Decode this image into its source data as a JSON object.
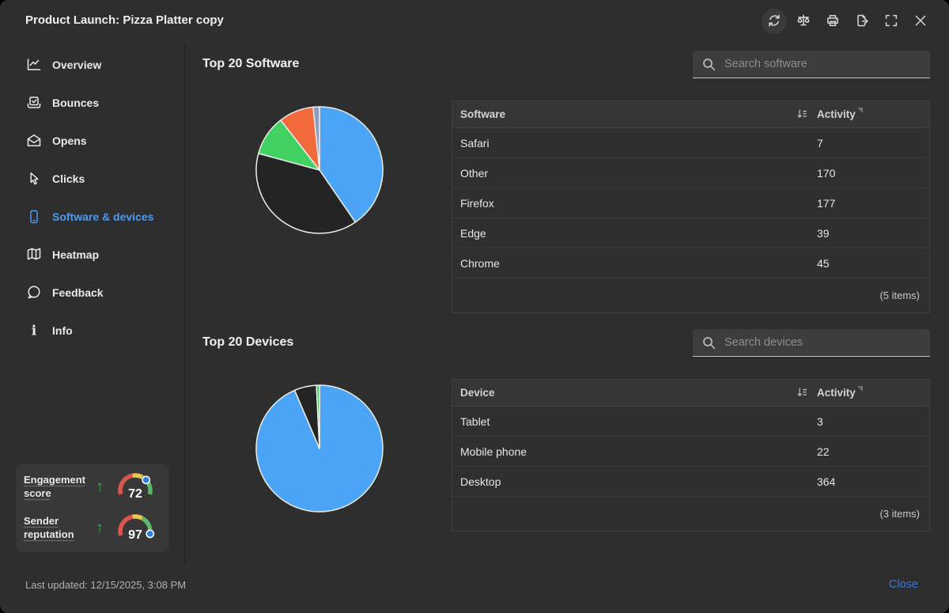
{
  "window": {
    "title": "Product Launch: Pizza Platter copy"
  },
  "titlebar": {
    "icons": [
      "refresh-icon",
      "compare-icon",
      "print-icon",
      "export-icon",
      "fullscreen-icon",
      "close-icon"
    ]
  },
  "sidebar": {
    "active_color": "#4e9af0",
    "items": [
      {
        "label": "Overview",
        "icon": "line-chart-icon",
        "active": false
      },
      {
        "label": "Bounces",
        "icon": "bounce-tray-icon",
        "active": false
      },
      {
        "label": "Opens",
        "icon": "open-envelope-icon",
        "active": false
      },
      {
        "label": "Clicks",
        "icon": "cursor-icon",
        "active": false
      },
      {
        "label": "Software & devices",
        "icon": "smartphone-icon",
        "active": true
      },
      {
        "label": "Heatmap",
        "icon": "map-icon",
        "active": false
      },
      {
        "label": "Feedback",
        "icon": "speech-bubble-icon",
        "active": false
      },
      {
        "label": "Info",
        "icon": "info-icon",
        "active": false
      }
    ]
  },
  "scores": {
    "items": [
      {
        "label": "Engagement score",
        "value": 72,
        "trend": "up",
        "trend_glyph": "↑"
      },
      {
        "label": "Sender reputation",
        "value": 97,
        "trend": "up",
        "trend_glyph": "↑"
      }
    ],
    "gauge_colors": {
      "low": "#d9554f",
      "mid": "#eac64f",
      "high": "#5cb868",
      "marker": "#2e7de4"
    }
  },
  "sections": [
    {
      "title": "Top 20 Software",
      "search_placeholder": "Search software",
      "table": {
        "col1": "Software",
        "col2": "Activity",
        "rows": [
          {
            "name": "Safari",
            "value": "7"
          },
          {
            "name": "Other",
            "value": "170"
          },
          {
            "name": "Firefox",
            "value": "177"
          },
          {
            "name": "Edge",
            "value": "39"
          },
          {
            "name": "Chrome",
            "value": "45"
          }
        ],
        "footer": "(5 items)"
      }
    },
    {
      "title": "Top 20 Devices",
      "search_placeholder": "Search devices",
      "table": {
        "col1": "Device",
        "col2": "Activity",
        "rows": [
          {
            "name": "Tablet",
            "value": "3"
          },
          {
            "name": "Mobile phone",
            "value": "22"
          },
          {
            "name": "Desktop",
            "value": "364"
          }
        ],
        "footer": "(3 items)"
      }
    }
  ],
  "chart_data": [
    {
      "type": "pie",
      "title": "Top 20 Software",
      "start_at": "top",
      "direction": "clockwise",
      "stroke": "#ededed",
      "series": [
        {
          "label": "Firefox",
          "value": 177,
          "color": "#4ba4f5"
        },
        {
          "label": "Other",
          "value": 170,
          "color": "#242424"
        },
        {
          "label": "Chrome",
          "value": 45,
          "color": "#41d263"
        },
        {
          "label": "Edge",
          "value": 39,
          "color": "#f2693c"
        },
        {
          "label": "Safari",
          "value": 7,
          "color": "#8f9cc1"
        }
      ]
    },
    {
      "type": "pie",
      "title": "Top 20 Devices",
      "start_at": "top",
      "direction": "clockwise",
      "stroke": "#ededed",
      "series": [
        {
          "label": "Desktop",
          "value": 364,
          "color": "#4ba4f5"
        },
        {
          "label": "Mobile phone",
          "value": 22,
          "color": "#242424"
        },
        {
          "label": "Tablet",
          "value": 3,
          "color": "#41d263"
        }
      ]
    }
  ],
  "footer": {
    "last_updated": "Last updated: 12/15/2025, 3:08 PM",
    "close_label": "Close"
  }
}
